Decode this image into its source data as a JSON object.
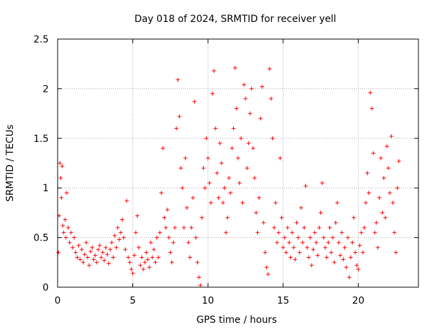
{
  "chart_data": {
    "type": "scatter",
    "title": "Day 018 of 2024, SRMTID for receiver yell",
    "xlabel": "GPS time / hours",
    "ylabel": "SRMTID / TECUs",
    "xlim": [
      0,
      24
    ],
    "ylim": [
      0,
      2.5
    ],
    "xticks": [
      0,
      5,
      10,
      15,
      20
    ],
    "xtick_labels": [
      "0",
      "5",
      "10",
      "15",
      "20"
    ],
    "yticks": [
      0,
      0.5,
      1,
      1.5,
      2,
      2.5
    ],
    "ytick_labels": [
      "0",
      "0.5",
      "1",
      "1.5",
      "2",
      "2.5"
    ],
    "grid": true,
    "marker": "+",
    "series": [
      {
        "name": "SRMTID",
        "color": "#ff0000",
        "points": [
          [
            0.05,
            0.35
          ],
          [
            0.1,
            0.72
          ],
          [
            0.15,
            1.25
          ],
          [
            0.2,
            1.1
          ],
          [
            0.25,
            0.9
          ],
          [
            0.3,
            1.22
          ],
          [
            0.35,
            0.62
          ],
          [
            0.4,
            0.55
          ],
          [
            0.5,
            0.68
          ],
          [
            0.55,
            0.5
          ],
          [
            0.6,
            0.95
          ],
          [
            0.7,
            0.6
          ],
          [
            0.8,
            0.45
          ],
          [
            0.9,
            0.55
          ],
          [
            1.0,
            0.4
          ],
          [
            1.1,
            0.5
          ],
          [
            1.2,
            0.35
          ],
          [
            1.3,
            0.3
          ],
          [
            1.4,
            0.42
          ],
          [
            1.5,
            0.28
          ],
          [
            1.6,
            0.38
          ],
          [
            1.7,
            0.25
          ],
          [
            1.8,
            0.33
          ],
          [
            1.9,
            0.45
          ],
          [
            2.0,
            0.3
          ],
          [
            2.1,
            0.22
          ],
          [
            2.2,
            0.36
          ],
          [
            2.3,
            0.4
          ],
          [
            2.4,
            0.28
          ],
          [
            2.5,
            0.32
          ],
          [
            2.6,
            0.25
          ],
          [
            2.7,
            0.38
          ],
          [
            2.8,
            0.42
          ],
          [
            2.9,
            0.3
          ],
          [
            3.0,
            0.35
          ],
          [
            3.1,
            0.27
          ],
          [
            3.2,
            0.4
          ],
          [
            3.3,
            0.33
          ],
          [
            3.4,
            0.24
          ],
          [
            3.5,
            0.38
          ],
          [
            3.6,
            0.45
          ],
          [
            3.7,
            0.3
          ],
          [
            3.8,
            0.52
          ],
          [
            3.9,
            0.4
          ],
          [
            4.0,
            0.6
          ],
          [
            4.1,
            0.48
          ],
          [
            4.2,
            0.55
          ],
          [
            4.3,
            0.68
          ],
          [
            4.4,
            0.5
          ],
          [
            4.5,
            0.38
          ],
          [
            4.6,
            0.87
          ],
          [
            4.7,
            0.3
          ],
          [
            4.8,
            0.25
          ],
          [
            4.9,
            0.18
          ],
          [
            5.0,
            0.14
          ],
          [
            5.1,
            0.32
          ],
          [
            5.2,
            0.55
          ],
          [
            5.3,
            0.72
          ],
          [
            5.4,
            0.4
          ],
          [
            5.5,
            0.22
          ],
          [
            5.6,
            0.3
          ],
          [
            5.7,
            0.18
          ],
          [
            5.8,
            0.25
          ],
          [
            5.9,
            0.35
          ],
          [
            6.0,
            0.28
          ],
          [
            6.1,
            0.2
          ],
          [
            6.2,
            0.45
          ],
          [
            6.3,
            0.3
          ],
          [
            6.4,
            0.38
          ],
          [
            6.5,
            0.25
          ],
          [
            6.6,
            0.5
          ],
          [
            6.7,
            0.3
          ],
          [
            6.8,
            0.55
          ],
          [
            6.9,
            0.95
          ],
          [
            7.0,
            1.4
          ],
          [
            7.1,
            0.7
          ],
          [
            7.2,
            0.6
          ],
          [
            7.3,
            0.78
          ],
          [
            7.4,
            0.5
          ],
          [
            7.5,
            0.35
          ],
          [
            7.6,
            0.25
          ],
          [
            7.7,
            0.45
          ],
          [
            7.8,
            0.6
          ],
          [
            7.9,
            1.6
          ],
          [
            8.0,
            2.09
          ],
          [
            8.1,
            1.72
          ],
          [
            8.2,
            1.2
          ],
          [
            8.3,
            1.0
          ],
          [
            8.4,
            0.6
          ],
          [
            8.5,
            1.3
          ],
          [
            8.6,
            0.8
          ],
          [
            8.7,
            0.45
          ],
          [
            8.8,
            0.3
          ],
          [
            8.9,
            0.6
          ],
          [
            9.0,
            0.9
          ],
          [
            9.1,
            1.87
          ],
          [
            9.2,
            0.5
          ],
          [
            9.3,
            0.25
          ],
          [
            9.4,
            0.1
          ],
          [
            9.5,
            0.02
          ],
          [
            9.6,
            0.7
          ],
          [
            9.7,
            1.2
          ],
          [
            9.8,
            1.0
          ],
          [
            9.9,
            1.5
          ],
          [
            10.0,
            1.3
          ],
          [
            10.1,
            1.05
          ],
          [
            10.2,
            0.85
          ],
          [
            10.3,
            1.95
          ],
          [
            10.4,
            2.18
          ],
          [
            10.5,
            1.6
          ],
          [
            10.6,
            1.15
          ],
          [
            10.7,
            0.9
          ],
          [
            10.8,
            1.45
          ],
          [
            10.9,
            1.25
          ],
          [
            11.0,
            0.85
          ],
          [
            11.1,
            1.0
          ],
          [
            11.2,
            0.55
          ],
          [
            11.3,
            0.7
          ],
          [
            11.4,
            1.1
          ],
          [
            11.5,
            0.95
          ],
          [
            11.6,
            1.4
          ],
          [
            11.7,
            1.6
          ],
          [
            11.8,
            2.21
          ],
          [
            11.9,
            1.8
          ],
          [
            12.0,
            1.3
          ],
          [
            12.1,
            1.05
          ],
          [
            12.2,
            1.5
          ],
          [
            12.3,
            0.85
          ],
          [
            12.4,
            2.04
          ],
          [
            12.5,
            1.9
          ],
          [
            12.6,
            1.2
          ],
          [
            12.7,
            1.45
          ],
          [
            12.8,
            1.75
          ],
          [
            12.9,
            2.0
          ],
          [
            13.0,
            1.4
          ],
          [
            13.1,
            1.1
          ],
          [
            13.2,
            0.75
          ],
          [
            13.3,
            0.55
          ],
          [
            13.4,
            0.9
          ],
          [
            13.5,
            1.7
          ],
          [
            13.6,
            2.02
          ],
          [
            13.7,
            0.65
          ],
          [
            13.8,
            0.35
          ],
          [
            13.9,
            0.2
          ],
          [
            14.0,
            0.13
          ],
          [
            14.1,
            2.2
          ],
          [
            14.2,
            1.9
          ],
          [
            14.3,
            1.5
          ],
          [
            14.4,
            0.6
          ],
          [
            14.5,
            0.85
          ],
          [
            14.6,
            0.45
          ],
          [
            14.7,
            0.55
          ],
          [
            14.8,
            1.3
          ],
          [
            14.9,
            0.7
          ],
          [
            15.0,
            0.4
          ],
          [
            15.1,
            0.5
          ],
          [
            15.2,
            0.35
          ],
          [
            15.3,
            0.6
          ],
          [
            15.4,
            0.45
          ],
          [
            15.5,
            0.3
          ],
          [
            15.6,
            0.55
          ],
          [
            15.7,
            0.4
          ],
          [
            15.8,
            0.28
          ],
          [
            15.9,
            0.65
          ],
          [
            16.0,
            0.5
          ],
          [
            16.1,
            0.35
          ],
          [
            16.2,
            0.8
          ],
          [
            16.3,
            0.45
          ],
          [
            16.4,
            0.6
          ],
          [
            16.5,
            1.02
          ],
          [
            16.6,
            0.4
          ],
          [
            16.7,
            0.3
          ],
          [
            16.8,
            0.5
          ],
          [
            16.9,
            0.22
          ],
          [
            17.0,
            0.38
          ],
          [
            17.1,
            0.55
          ],
          [
            17.2,
            0.45
          ],
          [
            17.3,
            0.32
          ],
          [
            17.4,
            0.6
          ],
          [
            17.5,
            0.75
          ],
          [
            17.6,
            1.05
          ],
          [
            17.7,
            0.5
          ],
          [
            17.8,
            0.4
          ],
          [
            17.9,
            0.3
          ],
          [
            18.0,
            0.45
          ],
          [
            18.1,
            0.6
          ],
          [
            18.2,
            0.35
          ],
          [
            18.3,
            0.5
          ],
          [
            18.4,
            0.25
          ],
          [
            18.5,
            0.65
          ],
          [
            18.6,
            0.85
          ],
          [
            18.7,
            0.45
          ],
          [
            18.8,
            0.32
          ],
          [
            18.9,
            0.55
          ],
          [
            19.0,
            0.28
          ],
          [
            19.1,
            0.4
          ],
          [
            19.2,
            0.2
          ],
          [
            19.3,
            0.5
          ],
          [
            19.4,
            0.1
          ],
          [
            19.5,
            0.3
          ],
          [
            19.6,
            0.45
          ],
          [
            19.7,
            0.7
          ],
          [
            19.8,
            0.35
          ],
          [
            19.9,
            0.22
          ],
          [
            20.0,
            0.18
          ],
          [
            20.1,
            0.42
          ],
          [
            20.2,
            0.55
          ],
          [
            20.3,
            0.35
          ],
          [
            20.4,
            0.6
          ],
          [
            20.5,
            0.85
          ],
          [
            20.6,
            1.15
          ],
          [
            20.7,
            0.95
          ],
          [
            20.8,
            1.96
          ],
          [
            20.9,
            1.8
          ],
          [
            21.0,
            1.35
          ],
          [
            21.1,
            0.55
          ],
          [
            21.2,
            0.65
          ],
          [
            21.3,
            0.4
          ],
          [
            21.4,
            0.9
          ],
          [
            21.5,
            1.3
          ],
          [
            21.6,
            0.75
          ],
          [
            21.7,
            1.1
          ],
          [
            21.8,
            0.7
          ],
          [
            21.9,
            1.42
          ],
          [
            22.0,
            1.2
          ],
          [
            22.1,
            0.95
          ],
          [
            22.2,
            1.52
          ],
          [
            22.3,
            0.85
          ],
          [
            22.4,
            0.55
          ],
          [
            22.5,
            0.35
          ],
          [
            22.6,
            1.0
          ],
          [
            22.7,
            1.27
          ]
        ]
      }
    ]
  }
}
